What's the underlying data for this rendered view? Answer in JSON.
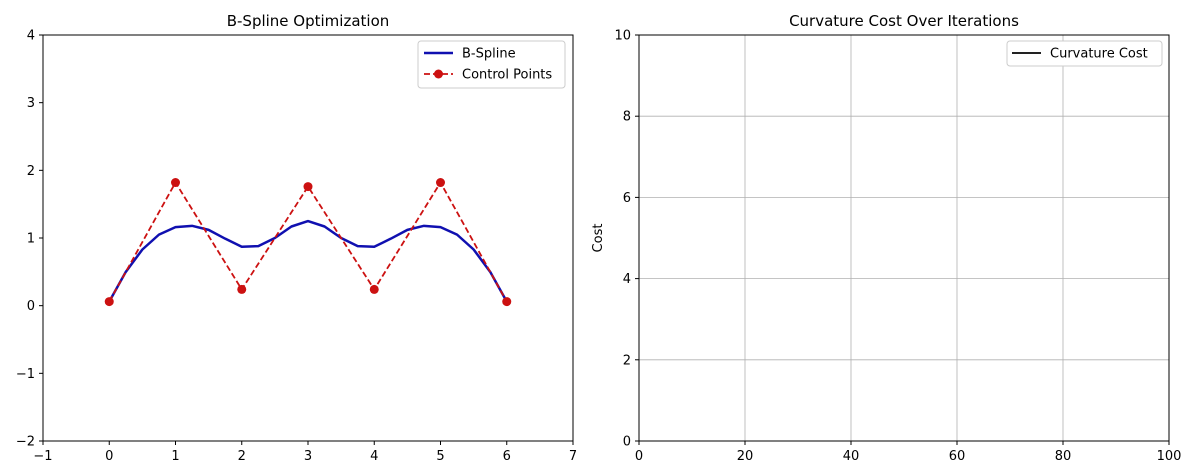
{
  "chart_data": [
    {
      "type": "line",
      "title": "B-Spline Optimization",
      "xlabel": "",
      "ylabel": "",
      "xlim": [
        -1,
        7
      ],
      "ylim": [
        -2,
        4
      ],
      "xticks": [
        -1,
        0,
        1,
        2,
        3,
        4,
        5,
        6,
        7
      ],
      "yticks": [
        -2,
        -1,
        0,
        1,
        2,
        3,
        4
      ],
      "grid": false,
      "legend_position": "top-right",
      "series": [
        {
          "name": "B-Spline",
          "color": "#1010b0",
          "style": "solid",
          "x": [
            0,
            0.25,
            0.5,
            0.75,
            1.0,
            1.25,
            1.5,
            1.75,
            2.0,
            2.25,
            2.5,
            2.75,
            3.0,
            3.25,
            3.5,
            3.75,
            4.0,
            4.25,
            4.5,
            4.75,
            5.0,
            5.25,
            5.5,
            5.75,
            6.0
          ],
          "y": [
            0.06,
            0.5,
            0.83,
            1.05,
            1.16,
            1.18,
            1.12,
            0.99,
            0.87,
            0.88,
            1.0,
            1.17,
            1.25,
            1.17,
            1.0,
            0.88,
            0.87,
            0.99,
            1.12,
            1.18,
            1.16,
            1.05,
            0.83,
            0.5,
            0.06
          ]
        },
        {
          "name": "Control Points",
          "color": "#cc1111",
          "style": "dashed",
          "marker": "circle",
          "x": [
            0,
            1,
            2,
            3,
            4,
            5,
            6
          ],
          "y": [
            0.06,
            1.82,
            0.24,
            1.76,
            0.24,
            1.82,
            0.06
          ]
        }
      ]
    },
    {
      "type": "line",
      "title": "Curvature Cost Over Iterations",
      "xlabel": "",
      "ylabel": "Cost",
      "xlim": [
        0,
        100
      ],
      "ylim": [
        0,
        10
      ],
      "xticks": [
        0,
        20,
        40,
        60,
        80,
        100
      ],
      "yticks": [
        0,
        2,
        4,
        6,
        8,
        10
      ],
      "grid": true,
      "legend_position": "top-right",
      "series": [
        {
          "name": "Curvature Cost",
          "color": "#222222",
          "style": "solid",
          "x": [],
          "y": []
        }
      ]
    }
  ]
}
